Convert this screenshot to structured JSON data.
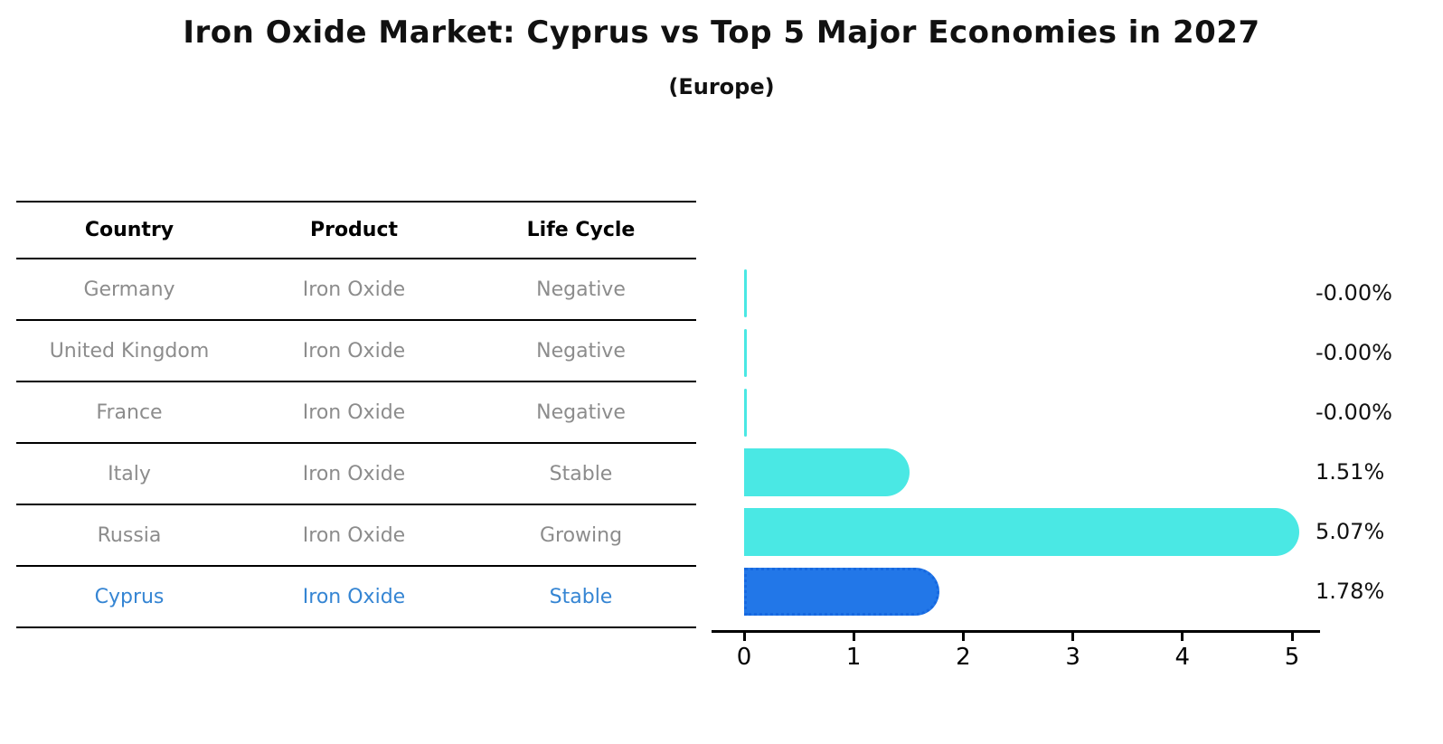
{
  "header": {
    "title": "Iron Oxide Market: Cyprus vs Top 5 Major Economies in 2027",
    "subtitle": "(Europe)"
  },
  "table": {
    "columns": [
      "Country",
      "Product",
      "Life Cycle"
    ],
    "rows": [
      {
        "country": "Germany",
        "product": "Iron Oxide",
        "life_cycle": "Negative",
        "highlight": false
      },
      {
        "country": "United Kingdom",
        "product": "Iron Oxide",
        "life_cycle": "Negative",
        "highlight": false
      },
      {
        "country": "France",
        "product": "Iron Oxide",
        "life_cycle": "Negative",
        "highlight": false
      },
      {
        "country": "Italy",
        "product": "Iron Oxide",
        "life_cycle": "Stable",
        "highlight": false
      },
      {
        "country": "Russia",
        "product": "Iron Oxide",
        "life_cycle": "Growing",
        "highlight": false
      },
      {
        "country": "Cyprus",
        "product": "Iron Oxide",
        "life_cycle": "Stable",
        "highlight": true
      }
    ]
  },
  "chart_data": {
    "type": "bar",
    "orientation": "horizontal",
    "title": "Iron Oxide Market: Cyprus vs Top 5 Major Economies in 2027 (Europe)",
    "categories": [
      "Germany",
      "United Kingdom",
      "France",
      "Italy",
      "Russia",
      "Cyprus"
    ],
    "values": [
      -0.0,
      -0.0,
      -0.0,
      1.51,
      5.07,
      1.78
    ],
    "value_labels": [
      "-0.00%",
      "-0.00%",
      "-0.00%",
      "1.51%",
      "5.07%",
      "1.78%"
    ],
    "xlabel": "",
    "ylabel": "",
    "xticks": [
      0,
      1,
      2,
      3,
      4,
      5
    ],
    "xlim": [
      0,
      5.5
    ],
    "grid": false,
    "legend_position": "none",
    "bar_colors": [
      "#4ae8e4",
      "#4ae8e4",
      "#4ae8e4",
      "#4ae8e4",
      "#4ae8e4",
      "#2277e8"
    ],
    "highlight_index": 5
  },
  "colors": {
    "bar_cyan": "#4ae8e4",
    "bar_blue": "#2277e8",
    "bar_blue_edge": "#1668e0",
    "highlight_text": "#3585d3",
    "table_text": "#8c8c8c",
    "axis_text": "#000000"
  }
}
